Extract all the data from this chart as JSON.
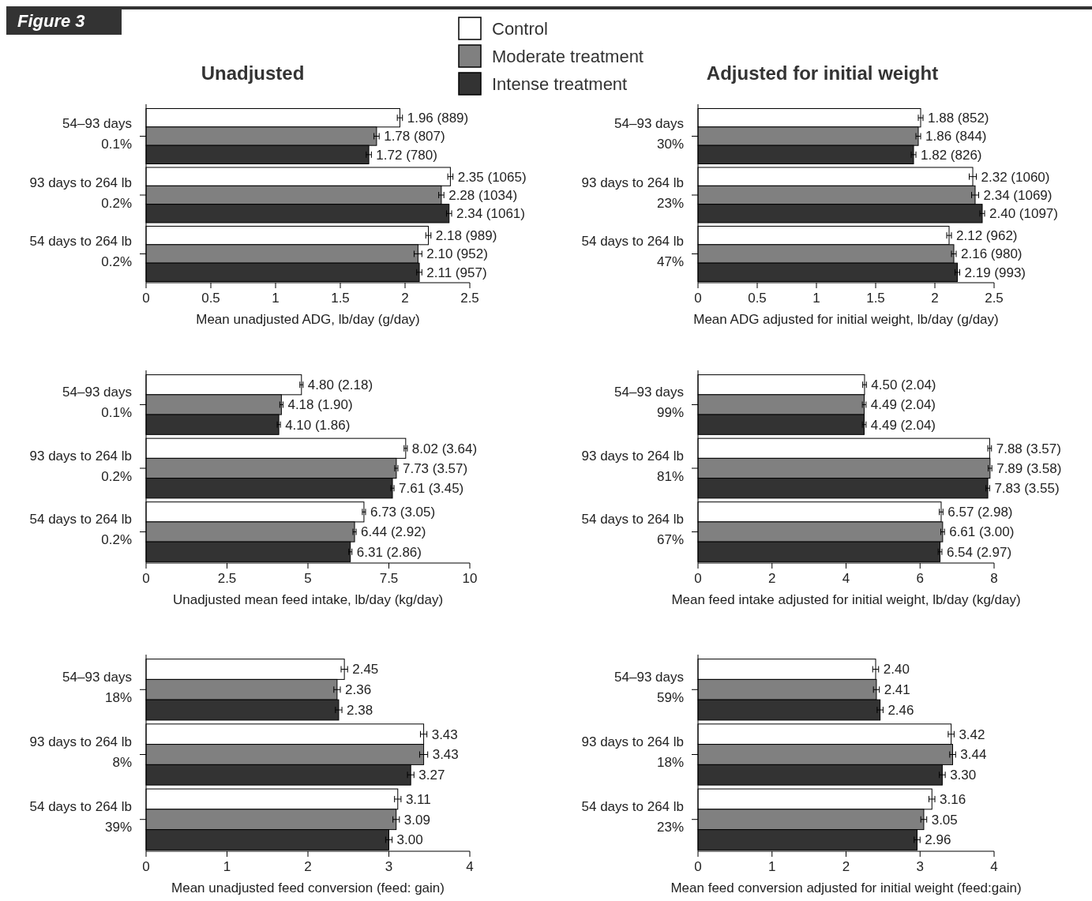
{
  "chart_data": [
    {
      "type": "bar",
      "orientation": "horizontal",
      "title": "Unadjusted",
      "annotations": [
        "Figure 3"
      ],
      "legend": "top",
      "xlabel": "Mean unadjusted ADG, lb/day (g/day)",
      "categories": [
        "54–93 days\n0.1%",
        "93 days to 264 lb\n0.2%",
        "54 days to 264 lb\n0.2%"
      ],
      "xlim": [
        0,
        2.5
      ],
      "xticks": [
        0,
        0.5,
        1,
        1.5,
        2,
        2.5
      ],
      "series": [
        {
          "name": "Control",
          "color": "#ffffff",
          "values": [
            1.96,
            2.35,
            2.18
          ],
          "errors": [
            0.02,
            0.02,
            0.02
          ],
          "value_labels": [
            "1.96 (889)",
            "2.35 (1065)",
            "2.18 (989)"
          ]
        },
        {
          "name": "Moderate treatment",
          "color": "#808080",
          "values": [
            1.78,
            2.28,
            2.1
          ],
          "errors": [
            0.02,
            0.02,
            0.03
          ],
          "value_labels": [
            "1.78 (807)",
            "2.28 (1034)",
            "2.10 (952)"
          ]
        },
        {
          "name": "Intense treatment",
          "color": "#333333",
          "values": [
            1.72,
            2.34,
            2.11
          ],
          "errors": [
            0.02,
            0.02,
            0.02
          ],
          "value_labels": [
            "1.72 (780)",
            "2.34 (1061)",
            "2.11 (957)"
          ]
        }
      ]
    },
    {
      "type": "bar",
      "orientation": "horizontal",
      "title": "Adjusted for initial weight",
      "xlabel": "Mean ADG adjusted for initial weight, lb/day (g/day)",
      "categories": [
        "54–93 days\n30%",
        "93 days to 264 lb\n23%",
        "54 days to 264 lb\n47%"
      ],
      "xlim": [
        0,
        2.5
      ],
      "xticks": [
        0,
        0.5,
        1,
        1.5,
        2,
        2.5
      ],
      "series": [
        {
          "color": "#ffffff",
          "values": [
            1.88,
            2.32,
            2.12
          ],
          "errors": [
            0.02,
            0.03,
            0.02
          ],
          "value_labels": [
            "1.88 (852)",
            "2.32 (1060)",
            "2.12 (962)"
          ]
        },
        {
          "color": "#808080",
          "values": [
            1.86,
            2.34,
            2.16
          ],
          "errors": [
            0.02,
            0.03,
            0.02
          ],
          "value_labels": [
            "1.86 (844)",
            "2.34 (1069)",
            "2.16 (980)"
          ]
        },
        {
          "color": "#333333",
          "values": [
            1.82,
            2.4,
            2.19
          ],
          "errors": [
            0.02,
            0.02,
            0.02
          ],
          "value_labels": [
            "1.82 (826)",
            "2.40 (1097)",
            "2.19 (993)"
          ]
        }
      ]
    },
    {
      "type": "bar",
      "orientation": "horizontal",
      "xlabel": "Unadjusted mean feed intake, lb/day (kg/day)",
      "categories": [
        "54–93 days\n0.1%",
        "93 days to 264 lb\n0.2%",
        "54 days to 264 lb\n0.2%"
      ],
      "xlim": [
        0,
        10
      ],
      "xticks": [
        0,
        2.5,
        5,
        7.5,
        10
      ],
      "series": [
        {
          "color": "#ffffff",
          "values": [
            4.8,
            8.02,
            6.73
          ],
          "errors": [
            0.05,
            0.05,
            0.05
          ],
          "value_labels": [
            "4.80 (2.18)",
            "8.02 (3.64)",
            "6.73 (3.05)"
          ]
        },
        {
          "color": "#808080",
          "values": [
            4.18,
            7.73,
            6.44
          ],
          "errors": [
            0.05,
            0.05,
            0.05
          ],
          "value_labels": [
            "4.18 (1.90)",
            "7.73 (3.57)",
            "6.44 (2.92)"
          ]
        },
        {
          "color": "#333333",
          "values": [
            4.1,
            7.61,
            6.31
          ],
          "errors": [
            0.05,
            0.05,
            0.05
          ],
          "value_labels": [
            "4.10 (1.86)",
            "7.61 (3.45)",
            "6.31 (2.86)"
          ]
        }
      ]
    },
    {
      "type": "bar",
      "orientation": "horizontal",
      "xlabel": "Mean feed intake adjusted for initial weight, lb/day (kg/day)",
      "categories": [
        "54–93 days\n99%",
        "93 days to 264 lb\n81%",
        "54 days to 264 lb\n67%"
      ],
      "xlim": [
        0,
        8
      ],
      "xticks": [
        0,
        2,
        4,
        6,
        8
      ],
      "series": [
        {
          "color": "#ffffff",
          "values": [
            4.5,
            7.88,
            6.57
          ],
          "errors": [
            0.05,
            0.05,
            0.05
          ],
          "value_labels": [
            "4.50 (2.04)",
            "7.88 (3.57)",
            "6.57 (2.98)"
          ]
        },
        {
          "color": "#808080",
          "values": [
            4.49,
            7.89,
            6.61
          ],
          "errors": [
            0.05,
            0.05,
            0.05
          ],
          "value_labels": [
            "4.49 (2.04)",
            "7.89 (3.58)",
            "6.61 (3.00)"
          ]
        },
        {
          "color": "#333333",
          "values": [
            4.49,
            7.83,
            6.54
          ],
          "errors": [
            0.05,
            0.05,
            0.05
          ],
          "value_labels": [
            "4.49 (2.04)",
            "7.83 (3.55)",
            "6.54 (2.97)"
          ]
        }
      ]
    },
    {
      "type": "bar",
      "orientation": "horizontal",
      "xlabel": "Mean unadjusted feed conversion (feed: gain)",
      "categories": [
        "54–93 days\n18%",
        "93 days to 264 lb\n8%",
        "54 days to 264 lb\n39%"
      ],
      "xlim": [
        0,
        4
      ],
      "xticks": [
        0,
        1,
        2,
        3,
        4
      ],
      "series": [
        {
          "color": "#ffffff",
          "values": [
            2.45,
            3.43,
            3.11
          ],
          "errors": [
            0.04,
            0.04,
            0.04
          ],
          "value_labels": [
            "2.45",
            "3.43",
            "3.11"
          ]
        },
        {
          "color": "#808080",
          "values": [
            2.36,
            3.43,
            3.09
          ],
          "errors": [
            0.04,
            0.05,
            0.04
          ],
          "value_labels": [
            "2.36",
            "3.43",
            "3.09"
          ]
        },
        {
          "color": "#333333",
          "values": [
            2.38,
            3.27,
            3.0
          ],
          "errors": [
            0.04,
            0.04,
            0.04
          ],
          "value_labels": [
            "2.38",
            "3.27",
            "3.00"
          ]
        }
      ]
    },
    {
      "type": "bar",
      "orientation": "horizontal",
      "xlabel": "Mean feed conversion adjusted for initial weight (feed:gain)",
      "categories": [
        "54–93 days\n59%",
        "93 days to 264 lb\n18%",
        "54 days to 264 lb\n23%"
      ],
      "xlim": [
        0,
        4
      ],
      "xticks": [
        0,
        1,
        2,
        3,
        4
      ],
      "series": [
        {
          "color": "#ffffff",
          "values": [
            2.4,
            3.42,
            3.16
          ],
          "errors": [
            0.04,
            0.04,
            0.04
          ],
          "value_labels": [
            "2.40",
            "3.42",
            "3.16"
          ]
        },
        {
          "color": "#808080",
          "values": [
            2.41,
            3.44,
            3.05
          ],
          "errors": [
            0.04,
            0.04,
            0.04
          ],
          "value_labels": [
            "2.41",
            "3.44",
            "3.05"
          ]
        },
        {
          "color": "#333333",
          "values": [
            2.46,
            3.3,
            2.96
          ],
          "errors": [
            0.04,
            0.04,
            0.04
          ],
          "value_labels": [
            "2.46",
            "3.30",
            "2.96"
          ]
        }
      ]
    }
  ]
}
